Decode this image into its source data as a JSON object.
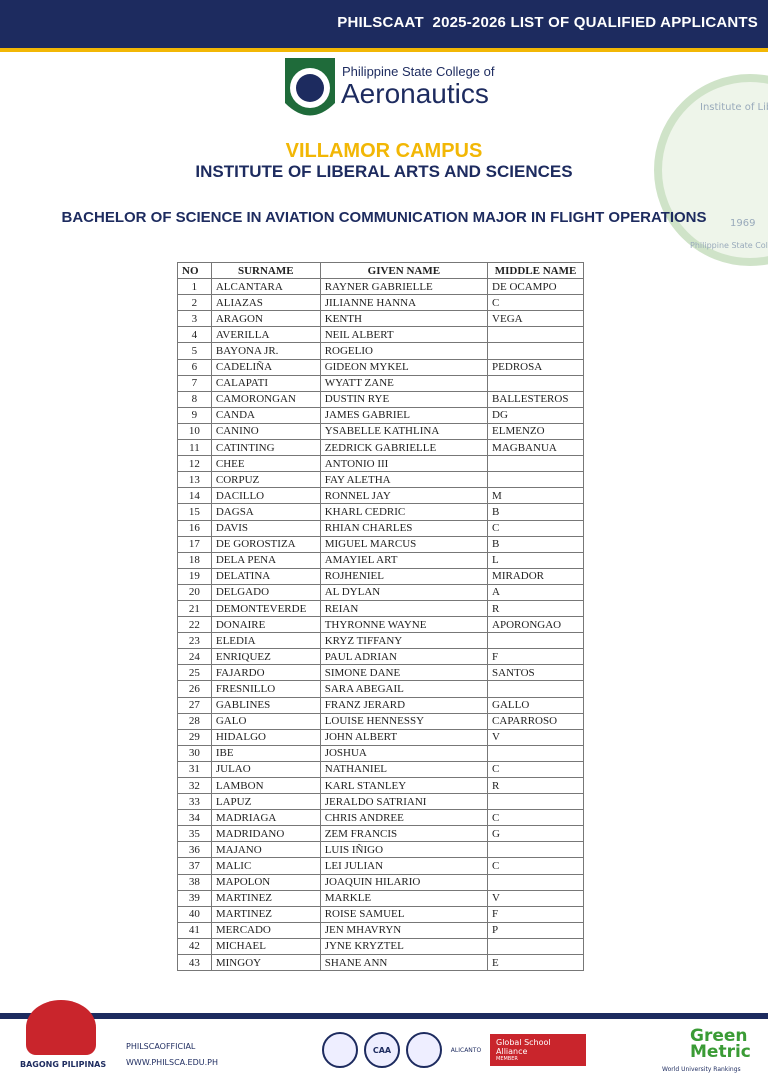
{
  "header": {
    "banner": "PHILSCAAT  2025-2026 LIST OF QUALIFIED APPLICANTS"
  },
  "logo": {
    "line1": "Philippine State College of",
    "line2": "Aeronautics"
  },
  "seal": {
    "top": "Institute of Liberal Arts",
    "year": "1969",
    "bottom": "Philippine State College of"
  },
  "campus": "VILLAMOR CAMPUS",
  "institute": "INSTITUTE OF LIBERAL ARTS AND SCIENCES",
  "program": "BACHELOR OF SCIENCE IN AVIATION COMMUNICATION MAJOR IN FLIGHT OPERATIONS",
  "table": {
    "columns": [
      "NO",
      "SURNAME",
      "GIVEN NAME",
      "MIDDLE NAME"
    ],
    "rows": [
      [
        1,
        "ALCANTARA",
        "RAYNER GABRIELLE",
        "DE OCAMPO"
      ],
      [
        2,
        "ALIAZAS",
        "JILIANNE HANNA",
        "C"
      ],
      [
        3,
        "ARAGON",
        "KENTH",
        "VEGA"
      ],
      [
        4,
        "AVERILLA",
        "NEIL ALBERT",
        null
      ],
      [
        5,
        "BAYONA JR.",
        "ROGELIO",
        null
      ],
      [
        6,
        "CADELIÑA",
        "GIDEON MYKEL",
        "PEDROSA"
      ],
      [
        7,
        "CALAPATI",
        "WYATT ZANE",
        null
      ],
      [
        8,
        "CAMORONGAN",
        "DUSTIN RYE",
        "BALLESTEROS"
      ],
      [
        9,
        "CANDA",
        "JAMES GABRIEL",
        "DG"
      ],
      [
        10,
        "CANINO",
        "YSABELLE KATHLINA",
        "ELMENZO"
      ],
      [
        11,
        "CATINTING",
        "ZEDRICK GABRIELLE",
        "MAGBANUA"
      ],
      [
        12,
        "CHEE",
        "ANTONIO III",
        null
      ],
      [
        13,
        "CORPUZ",
        "FAY ALETHA",
        null
      ],
      [
        14,
        "DACILLO",
        "RONNEL JAY",
        "M"
      ],
      [
        15,
        "DAGSA",
        "KHARL CEDRIC",
        "B"
      ],
      [
        16,
        "DAVIS",
        "RHIAN CHARLES",
        "C"
      ],
      [
        17,
        "DE GOROSTIZA",
        "MIGUEL MARCUS",
        "B"
      ],
      [
        18,
        "DELA PENA",
        "AMAYIEL ART",
        "L"
      ],
      [
        19,
        "DELATINA",
        "ROJHENIEL",
        "MIRADOR"
      ],
      [
        20,
        "DELGADO",
        "AL DYLAN",
        "A"
      ],
      [
        21,
        "DEMONTEVERDE",
        "REIAN",
        "R"
      ],
      [
        22,
        "DONAIRE",
        "THYRONNE WAYNE",
        "APORONGAO"
      ],
      [
        23,
        "ELEDIA",
        "KRYZ TIFFANY",
        null
      ],
      [
        24,
        "ENRIQUEZ",
        "PAUL ADRIAN",
        "F"
      ],
      [
        25,
        "FAJARDO",
        "SIMONE DANE",
        "SANTOS"
      ],
      [
        26,
        "FRESNILLO",
        "SARA ABEGAIL",
        null
      ],
      [
        27,
        "GABLINES",
        "FRANZ JERARD",
        "GALLO"
      ],
      [
        28,
        "GALO",
        "LOUISE HENNESSY",
        "CAPARROSO"
      ],
      [
        29,
        "HIDALGO",
        "JOHN ALBERT",
        "V"
      ],
      [
        30,
        "IBE",
        "JOSHUA",
        null
      ],
      [
        31,
        "JULAO",
        "NATHANIEL",
        "C"
      ],
      [
        32,
        "LAMBON",
        "KARL STANLEY",
        "R"
      ],
      [
        33,
        "LAPUZ",
        "JERALDO SATRIANI",
        null
      ],
      [
        34,
        "MADRIAGA",
        "CHRIS ANDREE",
        "C"
      ],
      [
        35,
        "MADRIDANO",
        "ZEM FRANCIS",
        "G"
      ],
      [
        36,
        "MAJANO",
        "LUIS IÑIGO",
        null
      ],
      [
        37,
        "MALIC",
        "LEI JULIAN",
        "C"
      ],
      [
        38,
        "MAPOLON",
        "JOAQUIN HILARIO",
        null
      ],
      [
        39,
        "MARTINEZ",
        "MARKLE",
        "V"
      ],
      [
        40,
        "MARTINEZ",
        "ROISE SAMUEL",
        "F"
      ],
      [
        41,
        "MERCADO",
        "JEN MHAVRYN",
        "P"
      ],
      [
        42,
        "MICHAEL",
        "JYNE KRYZTEL",
        null
      ],
      [
        43,
        "MINGOY",
        "SHANE ANN",
        "E"
      ]
    ]
  },
  "footer": {
    "social": "PHILSCAOFFICIAL",
    "website": "WWW.PHILSCA.EDU.PH",
    "bagong": "BAGONG PILIPINAS",
    "logos": [
      "CAA",
      "ALICANTO",
      "Global School Alliance",
      "MEMBER",
      "Green",
      "Metric",
      "World University Rankings"
    ]
  }
}
